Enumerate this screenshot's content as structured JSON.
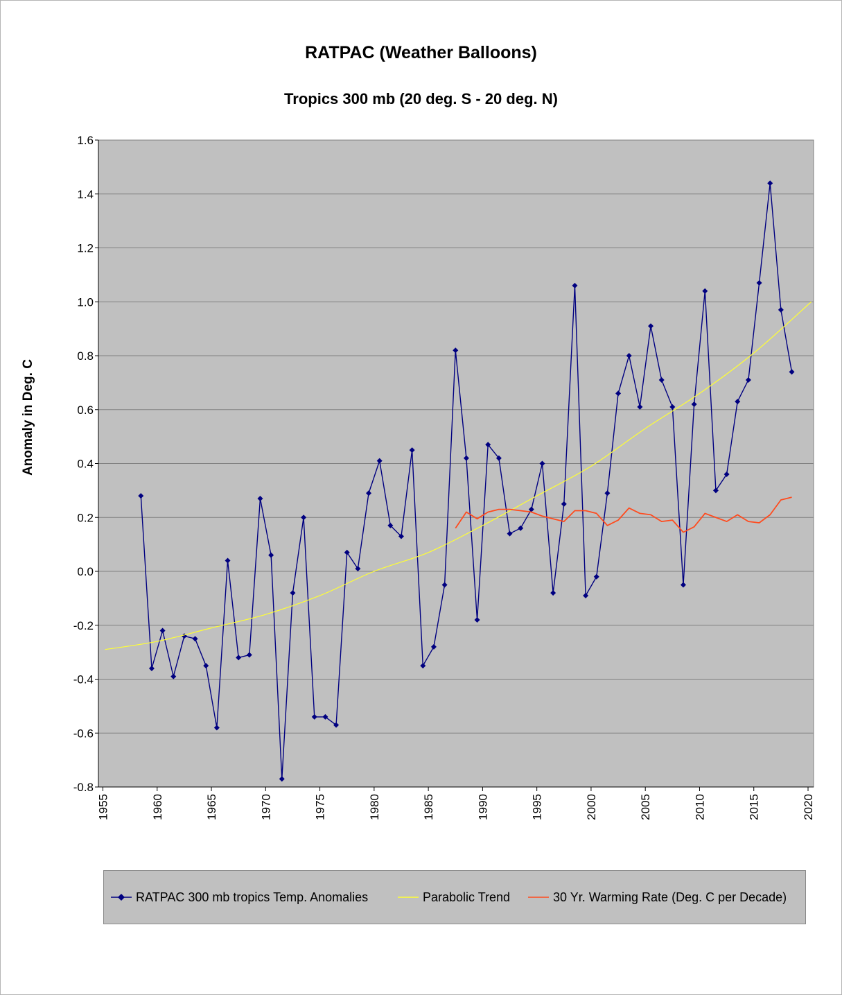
{
  "chart_data": {
    "type": "line",
    "title": "RATPAC (Weather Balloons)",
    "subtitle": "Tropics 300 mb (20 deg. S - 20 deg. N)",
    "xlabel": "",
    "ylabel": "Anomaly in Deg. C",
    "xlim": [
      1955,
      2020
    ],
    "ylim": [
      -0.8,
      1.6
    ],
    "x_ticks": [
      "1955",
      "1960",
      "1965",
      "1970",
      "1975",
      "1980",
      "1985",
      "1990",
      "1995",
      "2000",
      "2005",
      "2010",
      "2015",
      "2020"
    ],
    "y_ticks": [
      "1.6",
      "1.4",
      "1.2",
      "1.0",
      "0.8",
      "0.6",
      "0.4",
      "0.2",
      "0.0",
      "-0.2",
      "-0.4",
      "-0.6",
      "-0.8"
    ],
    "grid": true,
    "legend_position": "bottom",
    "series": [
      {
        "name": "RATPAC 300 mb tropics Temp. Anomalies",
        "color": "#000080",
        "marker": "diamond",
        "x": [
          1958.5,
          1959.5,
          1960.5,
          1961.5,
          1962.5,
          1963.5,
          1964.5,
          1965.5,
          1966.5,
          1967.5,
          1968.5,
          1969.5,
          1970.5,
          1971.5,
          1972.5,
          1973.5,
          1974.5,
          1975.5,
          1976.5,
          1977.5,
          1978.5,
          1979.5,
          1980.5,
          1981.5,
          1982.5,
          1983.5,
          1984.5,
          1985.5,
          1986.5,
          1987.5,
          1988.5,
          1989.5,
          1990.5,
          1991.5,
          1992.5,
          1993.5,
          1994.5,
          1995.5,
          1996.5,
          1997.5,
          1998.5,
          1999.5,
          2000.5,
          2001.5,
          2002.5,
          2003.5,
          2004.5,
          2005.5,
          2006.5,
          2007.5,
          2008.5,
          2009.5,
          2010.5,
          2011.5,
          2012.5,
          2013.5,
          2014.5,
          2015.5,
          2016.5,
          2017.5,
          2018.5
        ],
        "values": [
          0.28,
          -0.36,
          -0.22,
          -0.39,
          -0.24,
          -0.25,
          -0.35,
          -0.58,
          0.04,
          -0.32,
          -0.31,
          0.27,
          0.06,
          -0.77,
          -0.08,
          0.2,
          -0.54,
          -0.54,
          -0.57,
          0.07,
          0.01,
          0.29,
          0.41,
          0.17,
          0.13,
          0.45,
          -0.35,
          -0.28,
          -0.05,
          0.82,
          0.42,
          -0.18,
          0.47,
          0.42,
          0.14,
          0.16,
          0.23,
          0.4,
          -0.08,
          0.25,
          1.06,
          -0.09,
          -0.02,
          0.29,
          0.66,
          0.8,
          0.61,
          0.91,
          0.71,
          0.61,
          -0.05,
          0.62,
          1.04,
          0.3,
          0.36,
          0.63,
          0.71,
          1.07,
          1.44,
          0.97,
          0.74
        ]
      },
      {
        "name": "Parabolic Trend",
        "color": "#ffff33",
        "marker": "none",
        "x": [
          1955.2,
          1960,
          1965,
          1970,
          1975,
          1980,
          1985,
          1990,
          1995,
          2000,
          2005,
          2010,
          2015,
          2020.3
        ],
        "values": [
          -0.29,
          -0.26,
          -0.21,
          -0.16,
          -0.09,
          0.0,
          0.07,
          0.17,
          0.28,
          0.39,
          0.53,
          0.66,
          0.81,
          1.0
        ]
      },
      {
        "name": "30 Yr. Warming Rate (Deg. C per Decade)",
        "color": "#ff4b1e",
        "marker": "none",
        "x": [
          1987.5,
          1988.5,
          1989.5,
          1990.5,
          1991.5,
          1992.5,
          1993.5,
          1994.5,
          1995.5,
          1996.5,
          1997.5,
          1998.5,
          1999.5,
          2000.5,
          2001.5,
          2002.5,
          2003.5,
          2004.5,
          2005.5,
          2006.5,
          2007.5,
          2008.5,
          2009.5,
          2010.5,
          2011.5,
          2012.5,
          2013.5,
          2014.5,
          2015.5,
          2016.5,
          2017.5,
          2018.5
        ],
        "values": [
          0.16,
          0.22,
          0.195,
          0.22,
          0.23,
          0.23,
          0.225,
          0.22,
          0.205,
          0.195,
          0.185,
          0.225,
          0.225,
          0.215,
          0.17,
          0.19,
          0.235,
          0.215,
          0.21,
          0.185,
          0.19,
          0.145,
          0.165,
          0.215,
          0.2,
          0.185,
          0.21,
          0.185,
          0.18,
          0.21,
          0.265,
          0.275
        ]
      }
    ]
  }
}
